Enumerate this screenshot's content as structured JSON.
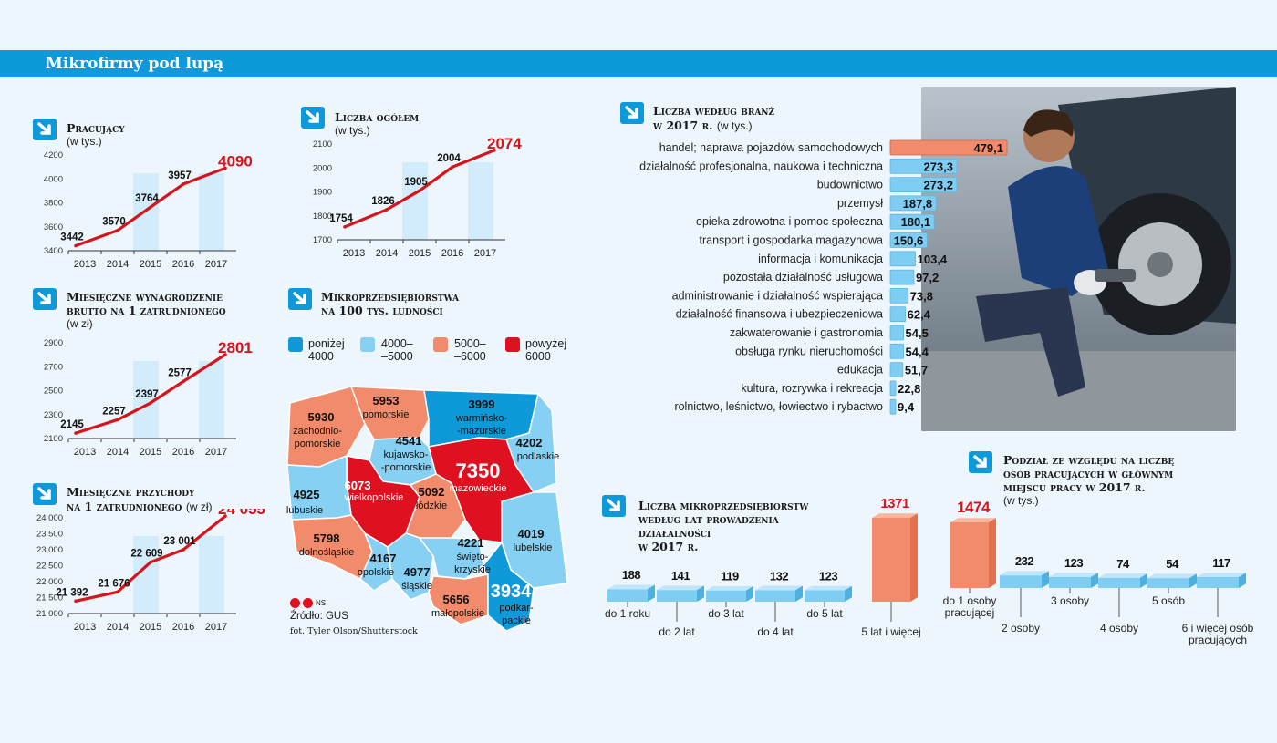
{
  "title": "Mikrofirmy pod lupą",
  "colors": {
    "accent": "#0e9ad9",
    "line": "#d6141c",
    "highlight": "#f28b6b",
    "bar_blue": "#7fcdf2",
    "bar_light": "#bfe6fa",
    "map_c1": "#0e9ad9",
    "map_c2": "#86d0f3",
    "map_c3": "#f28b6b",
    "map_c4": "#df1120"
  },
  "icons": {
    "section_marker": "arrow-down-right-icon",
    "copyright": "copyright-icon"
  },
  "charts": {
    "pracujacy": {
      "title": "Pracujący",
      "unit": "(w tys.)"
    },
    "liczba": {
      "title": "Liczba ogółem",
      "unit": "(w tys.)"
    },
    "wynagrodzenie": {
      "title_line1": "Miesięczne wynagrodzenie",
      "title_line2": "brutto na 1 zatrudnionego",
      "unit": "(w zł)"
    },
    "przychody": {
      "title_line1": "Miesięczne przychody",
      "title_line2": "na 1 zatrudnionego",
      "unit": "(w zł)"
    },
    "branze": {
      "title_line1": "Liczba według branż",
      "title_line2": "w 2017 r.",
      "unit": "(w tys.)"
    },
    "lata": {
      "title_line1": "Liczba mikroprzedsiębiorstw",
      "title_line2": "według lat prowadzenia",
      "title_line3": "działalności",
      "title_line4": "w 2017 r."
    },
    "podzial": {
      "title_line1": "Podział ze względu na liczbę",
      "title_line2": "osób pracujących w głównym",
      "title_line3": "miejscu pracy w 2017 r.",
      "unit": "(w tys.)"
    }
  },
  "map": {
    "title_line1": "Mikroprzedsiębiorstwa",
    "title_line2": "na 100 tys. ludności",
    "legend": [
      {
        "line1": "poniżej",
        "line2": "4000",
        "color": "#0e9ad9"
      },
      {
        "line1": "4000–",
        "line2": "–5000",
        "color": "#86d0f3"
      },
      {
        "line1": "5000–",
        "line2": "–6000",
        "color": "#f28b6b"
      },
      {
        "line1": "powyżej",
        "line2": "6000",
        "color": "#df1120"
      }
    ],
    "regions": [
      {
        "value": "5930",
        "name": "zachodnio-",
        "name2": "pomorskie"
      },
      {
        "value": "5953",
        "name": "pomorskie"
      },
      {
        "value": "3999",
        "name": "warmińsko-",
        "name2": "-mazurskie"
      },
      {
        "value": "4541",
        "name": "kujawsko-",
        "name2": "-pomorskie"
      },
      {
        "value": "4202",
        "name": "podlaskie"
      },
      {
        "value": "7350",
        "name": "mazowieckie"
      },
      {
        "value": "6073",
        "name": "wielkopolskie"
      },
      {
        "value": "4925",
        "name": "lubuskie"
      },
      {
        "value": "5092",
        "name": "łódzkie"
      },
      {
        "value": "5798",
        "name": "dolnośląskie"
      },
      {
        "value": "4167",
        "name": "opolskie"
      },
      {
        "value": "4977",
        "name": "śląskie"
      },
      {
        "value": "4221",
        "name": "święto-",
        "name2": "krzyskie"
      },
      {
        "value": "4019",
        "name": "lubelskie"
      },
      {
        "value": "5656",
        "name": "małopolskie"
      },
      {
        "value": "3934",
        "name": "podkar-",
        "name2": "packie"
      }
    ]
  },
  "footer": {
    "credit_sym": "NS",
    "source": "Źródło: GUS",
    "photo": "fot. Tyler Olson/Shutterstock"
  },
  "chart_data": [
    {
      "type": "line",
      "title": "Pracujący",
      "ylabel": "(w tys.)",
      "x": [
        "2013",
        "2014",
        "2015",
        "2016",
        "2017"
      ],
      "y": [
        3442,
        3570,
        3764,
        3957,
        4090
      ],
      "labels": [
        "3442",
        "3570",
        "3764",
        "3957",
        "4090"
      ],
      "yticks": [
        "3400",
        "3600",
        "3800",
        "4000",
        "4200"
      ],
      "ylim": [
        3400,
        4200
      ]
    },
    {
      "type": "line",
      "title": "Liczba ogółem",
      "ylabel": "(w tys.)",
      "x": [
        "2013",
        "2014",
        "2015",
        "2016",
        "2017"
      ],
      "y": [
        1754,
        1826,
        1905,
        2004,
        2074
      ],
      "labels": [
        "1754",
        "1826",
        "1905",
        "2004",
        "2074"
      ],
      "yticks": [
        "1700",
        "1800",
        "1900",
        "2000",
        "2100"
      ],
      "ylim": [
        1700,
        2100
      ]
    },
    {
      "type": "line",
      "title": "Miesięczne wynagrodzenie brutto na 1 zatrudnionego",
      "ylabel": "(w zł)",
      "x": [
        "2013",
        "2014",
        "2015",
        "2016",
        "2017"
      ],
      "y": [
        2145,
        2257,
        2397,
        2577,
        2801
      ],
      "labels": [
        "2145",
        "2257",
        "2397",
        "2577",
        "2801"
      ],
      "yticks": [
        "2100",
        "2300",
        "2500",
        "2700",
        "2900"
      ],
      "ylim": [
        2100,
        2900
      ]
    },
    {
      "type": "line",
      "title": "Miesięczne przychody na 1 zatrudnionego",
      "ylabel": "(w zł)",
      "x": [
        "2013",
        "2014",
        "2015",
        "2016",
        "2017"
      ],
      "y": [
        21392,
        21676,
        22609,
        23001,
        24055
      ],
      "labels": [
        "21 392",
        "21 676",
        "22 609",
        "23 001",
        "24 055"
      ],
      "yticks": [
        "21 000",
        "21 500",
        "22 000",
        "22 500",
        "23 000",
        "23 500",
        "24 000"
      ],
      "ylim": [
        21000,
        24000
      ]
    },
    {
      "type": "bar",
      "title": "Liczba według branż w 2017 r.",
      "ylabel": "(w tys.)",
      "categories": [
        "handel; naprawa pojazdów samochodowych",
        "działalność profesjonalna, naukowa i techniczna",
        "budownictwo",
        "przemysł",
        "opieka zdrowotna i pomoc społeczna",
        "transport i gospodarka magazynowa",
        "informacja i komunikacja",
        "pozostała działalność usługowa",
        "administrowanie i działalność wspierająca",
        "działalność finansowa i ubezpieczeniowa",
        "zakwaterowanie i gastronomia",
        "obsługa rynku nieruchomości",
        "edukacja",
        "kultura, rozrywka i rekreacja",
        "rolnictwo, leśnictwo, łowiectwo i rybactwo"
      ],
      "values": [
        479.1,
        273.3,
        273.2,
        187.8,
        180.1,
        150.6,
        103.4,
        97.2,
        73.8,
        62.4,
        54.5,
        54.4,
        51.7,
        22.8,
        9.4
      ],
      "labels": [
        "479,1",
        "273,3",
        "273,2",
        "187,8",
        "180,1",
        "150,6",
        "103,4",
        "97,2",
        "73,8",
        "62,4",
        "54,5",
        "54,4",
        "51,7",
        "22,8",
        "9,4"
      ]
    },
    {
      "type": "bar",
      "title": "Liczba mikroprzedsiębiorstw według lat prowadzenia działalności w 2017 r.",
      "categories": [
        "do 1 roku",
        "do 2 lat",
        "do 3 lat",
        "do 4 lat",
        "do 5 lat",
        "5 lat i więcej"
      ],
      "values": [
        188,
        141,
        119,
        132,
        123,
        1371
      ]
    },
    {
      "type": "bar",
      "title": "Podział ze względu na liczbę osób pracujących w głównym miejscu pracy w 2017 r.",
      "ylabel": "(w tys.)",
      "categories": [
        "do 1 osoby pracującej",
        "2 osoby",
        "3 osoby",
        "4 osoby",
        "5 osób",
        "6 i więcej osób pracujących"
      ],
      "values": [
        1474,
        232,
        123,
        74,
        54,
        117
      ]
    }
  ]
}
